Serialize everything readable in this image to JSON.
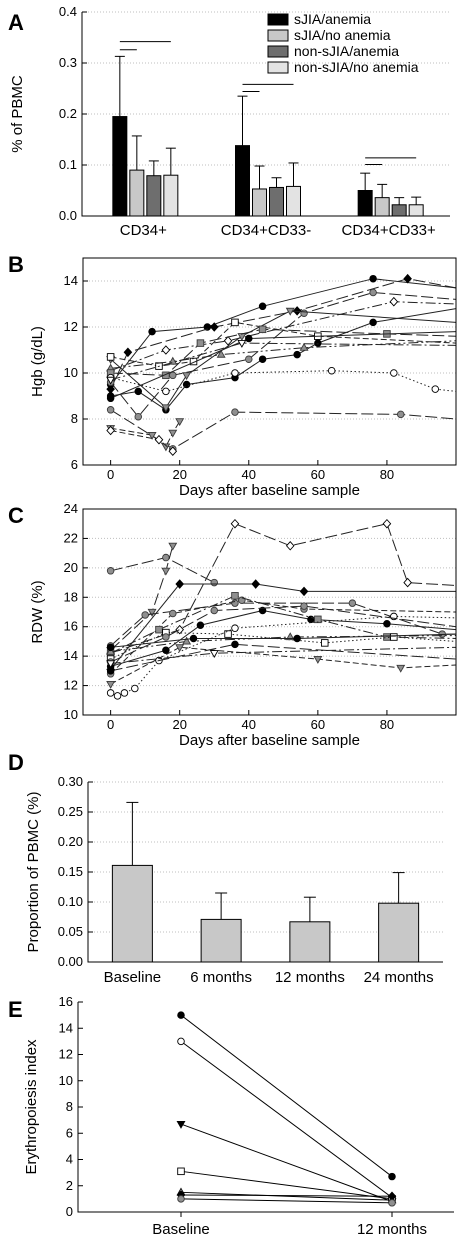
{
  "chart_data": [
    {
      "panel": "A",
      "type": "bar",
      "ylabel": "% of PBMC",
      "ylim": [
        0,
        0.4
      ],
      "yticks": [
        "0.0",
        "0.1",
        "0.2",
        "0.3",
        "0.4"
      ],
      "categories": [
        "CD34+",
        "CD34+CD33-",
        "CD34+CD33+"
      ],
      "series": [
        {
          "name": "sJIA/anemia",
          "values": [
            0.195,
            0.138,
            0.05
          ],
          "errors": [
            0.118,
            0.097,
            0.034
          ],
          "color": "#000000"
        },
        {
          "name": "sJIA/no anemia",
          "values": [
            0.09,
            0.053,
            0.036
          ],
          "errors": [
            0.067,
            0.045,
            0.026
          ],
          "color": "#c8c8c8"
        },
        {
          "name": "non-sJIA/anemia",
          "values": [
            0.079,
            0.056,
            0.022
          ],
          "errors": [
            0.029,
            0.019,
            0.014
          ],
          "color": "#6e6e6e"
        },
        {
          "name": "non-sJIA/no anemia",
          "values": [
            0.08,
            0.058,
            0.022
          ],
          "errors": [
            0.053,
            0.046,
            0.015
          ],
          "color": "#e3e3e3"
        }
      ],
      "brackets": [
        {
          "category": 0,
          "y": 0.342,
          "from": 0,
          "to": 3
        },
        {
          "category": 0,
          "y": 0.326,
          "from": 0,
          "to": 1
        },
        {
          "category": 1,
          "y": 0.258,
          "from": 0,
          "to": 3
        },
        {
          "category": 1,
          "y": 0.244,
          "from": 0,
          "to": 1
        },
        {
          "category": 2,
          "y": 0.114,
          "from": 0,
          "to": 3
        },
        {
          "category": 2,
          "y": 0.101,
          "from": 0,
          "to": 1
        }
      ],
      "grid": true,
      "legend_position": "top-right"
    },
    {
      "panel": "B",
      "type": "line",
      "xlabel": "Days after baseline sample",
      "ylabel": "Hgb (g/dL)",
      "xlim": [
        -8,
        100
      ],
      "ylim": [
        6,
        15
      ],
      "xticks": [
        0,
        20,
        40,
        60,
        80
      ],
      "yticks": [
        6,
        8,
        10,
        12,
        14
      ],
      "series": [
        {
          "marker": "filled-circle",
          "style": "solid",
          "points": [
            [
              0,
              9.5
            ],
            [
              12,
              11.8
            ],
            [
              28,
              12
            ],
            [
              44,
              12.9
            ],
            [
              76,
              14.1
            ],
            [
              100,
              13.7
            ]
          ]
        },
        {
          "marker": "filled-diamond",
          "style": "longdash",
          "points": [
            [
              0,
              9.3
            ],
            [
              5,
              10.9
            ],
            [
              30,
              12
            ],
            [
              54,
              12.7
            ],
            [
              86,
              14.1
            ],
            [
              100,
              13.7
            ]
          ]
        },
        {
          "marker": "open-diamond",
          "style": "dashdot",
          "points": [
            [
              0,
              10.1
            ],
            [
              16,
              11
            ],
            [
              34,
              11.4
            ],
            [
              82,
              13.1
            ],
            [
              100,
              13
            ]
          ]
        },
        {
          "marker": "grey-circle",
          "style": "longdash",
          "points": [
            [
              0,
              9.6
            ],
            [
              8,
              8.1
            ],
            [
              18,
              9.9
            ],
            [
              40,
              10.6
            ],
            [
              56,
              12.6
            ],
            [
              76,
              13.5
            ],
            [
              100,
              13.2
            ]
          ]
        },
        {
          "marker": "filled-circle",
          "style": "solid",
          "points": [
            [
              0,
              9
            ],
            [
              8,
              9.2
            ],
            [
              16,
              8.4
            ],
            [
              22,
              9.5
            ],
            [
              36,
              9.8
            ],
            [
              44,
              10.6
            ],
            [
              54,
              10.8
            ],
            [
              60,
              11.3
            ],
            [
              76,
              12.2
            ],
            [
              100,
              12.8
            ]
          ]
        },
        {
          "marker": "grey-triangle-down",
          "style": "solid",
          "points": [
            [
              0,
              10.6
            ],
            [
              16,
              8.5
            ],
            [
              22,
              9.9
            ],
            [
              38,
              11.6
            ],
            [
              52,
              12.7
            ],
            [
              100,
              12.2
            ]
          ]
        },
        {
          "marker": "open-square",
          "style": "dashed",
          "points": [
            [
              0,
              10.7
            ],
            [
              14,
              10.3
            ],
            [
              24,
              10.5
            ],
            [
              36,
              12.2
            ],
            [
              60,
              11.6
            ],
            [
              100,
              11.3
            ]
          ]
        },
        {
          "marker": "grey-triangle-up",
          "style": "dashdotdot",
          "points": [
            [
              0,
              10.2
            ],
            [
              18,
              10.5
            ],
            [
              32,
              10.8
            ],
            [
              56,
              11.1
            ],
            [
              100,
              11.4
            ]
          ]
        },
        {
          "marker": "grey-square",
          "style": "longdash",
          "points": [
            [
              0,
              10
            ],
            [
              16,
              9.9
            ],
            [
              26,
              11.3
            ],
            [
              44,
              11.9
            ],
            [
              80,
              11.7
            ],
            [
              100,
              11.6
            ]
          ]
        },
        {
          "marker": "open-circle",
          "style": "dotted",
          "points": [
            [
              0,
              9.8
            ],
            [
              16,
              9.2
            ],
            [
              36,
              10
            ],
            [
              64,
              10.1
            ],
            [
              82,
              10
            ],
            [
              94,
              9.3
            ],
            [
              100,
              9.2
            ]
          ]
        },
        {
          "marker": "grey-circle",
          "style": "longdash",
          "points": [
            [
              0,
              8.4
            ],
            [
              18,
              6.7
            ],
            [
              36,
              8.3
            ],
            [
              84,
              8.2
            ],
            [
              100,
              8
            ]
          ]
        },
        {
          "marker": "grey-triangle-down",
          "style": "dashed",
          "points": [
            [
              0,
              7.6
            ],
            [
              12,
              7.3
            ],
            [
              16,
              6.8
            ],
            [
              18,
              7.4
            ],
            [
              20,
              7.9
            ]
          ]
        },
        {
          "marker": "open-diamond",
          "style": "dashed",
          "points": [
            [
              0,
              7.5
            ],
            [
              14,
              7.1
            ],
            [
              18,
              6.6
            ]
          ]
        },
        {
          "marker": "filled-circle",
          "style": "solid",
          "points": [
            [
              0,
              8.9
            ],
            [
              40,
              11.5
            ],
            [
              100,
              11.8
            ]
          ]
        },
        {
          "marker": "open-triangle-down",
          "style": "dashdot",
          "points": [
            [
              0,
              9.7
            ],
            [
              38,
              11.3
            ],
            [
              100,
              11.2
            ]
          ]
        }
      ],
      "grid": true
    },
    {
      "panel": "C",
      "type": "line",
      "xlabel": "Days after baseline sample",
      "ylabel": "RDW (%)",
      "xlim": [
        -8,
        100
      ],
      "ylim": [
        10,
        24
      ],
      "xticks": [
        0,
        20,
        40,
        60,
        80
      ],
      "yticks": [
        10,
        12,
        14,
        16,
        18,
        20,
        22,
        24
      ],
      "series": [
        {
          "marker": "grey-circle",
          "style": "longdash",
          "points": [
            [
              0,
              19.8
            ],
            [
              16,
              20.7
            ],
            [
              30,
              19
            ]
          ]
        },
        {
          "marker": "grey-triangle-down",
          "style": "longdash",
          "points": [
            [
              0,
              14.4
            ],
            [
              12,
              17
            ],
            [
              16,
              19.8
            ],
            [
              18,
              21.5
            ]
          ]
        },
        {
          "marker": "open-diamond",
          "style": "longdash",
          "points": [
            [
              0,
              14.2
            ],
            [
              20,
              15.8
            ],
            [
              36,
              23
            ],
            [
              52,
              21.5
            ],
            [
              80,
              23
            ],
            [
              86,
              19
            ],
            [
              100,
              18.8
            ]
          ]
        },
        {
          "marker": "filled-diamond",
          "style": "solid",
          "points": [
            [
              0,
              13.1
            ],
            [
              20,
              18.9
            ],
            [
              42,
              18.9
            ],
            [
              56,
              18.4
            ],
            [
              100,
              18.4
            ]
          ]
        },
        {
          "marker": "grey-circle",
          "style": "longdash",
          "points": [
            [
              0,
              14.7
            ],
            [
              10,
              16.8
            ],
            [
              36,
              17.6
            ],
            [
              70,
              17.6
            ],
            [
              96,
              15.5
            ],
            [
              100,
              15.5
            ]
          ]
        },
        {
          "marker": "filled-circle",
          "style": "solid",
          "points": [
            [
              0,
              13.3
            ],
            [
              16,
              14.4
            ],
            [
              26,
              16.1
            ],
            [
              44,
              17.1
            ],
            [
              58,
              16.5
            ],
            [
              80,
              16.2
            ],
            [
              100,
              15.8
            ]
          ]
        },
        {
          "marker": "grey-circle",
          "style": "dashed",
          "points": [
            [
              0,
              12.8
            ],
            [
              18,
              16.9
            ],
            [
              38,
              17.8
            ],
            [
              56,
              17.2
            ],
            [
              100,
              17
            ]
          ]
        },
        {
          "marker": "grey-square",
          "style": "dashdot",
          "points": [
            [
              0,
              14.2
            ],
            [
              14,
              15.8
            ],
            [
              36,
              18.1
            ],
            [
              60,
              16.5
            ],
            [
              80,
              15.3
            ],
            [
              100,
              15.2
            ]
          ]
        },
        {
          "marker": "open-square",
          "style": "dotted",
          "points": [
            [
              0,
              13.8
            ],
            [
              16,
              15.6
            ],
            [
              34,
              15.5
            ],
            [
              62,
              14.9
            ],
            [
              82,
              15.3
            ],
            [
              100,
              15
            ]
          ]
        },
        {
          "marker": "grey-triangle-up",
          "style": "dashdotdot",
          "points": [
            [
              0,
              14.3
            ],
            [
              22,
              15
            ],
            [
              52,
              15.3
            ],
            [
              100,
              15.4
            ]
          ]
        },
        {
          "marker": "filled-circle",
          "style": "solid",
          "points": [
            [
              0,
              14.6
            ],
            [
              24,
              15.2
            ],
            [
              54,
              15.2
            ],
            [
              100,
              15.5
            ]
          ]
        },
        {
          "marker": "open-circle",
          "style": "dotted",
          "points": [
            [
              0,
              11.5
            ],
            [
              2,
              11.3
            ],
            [
              4,
              11.5
            ],
            [
              7,
              11.8
            ],
            [
              14,
              13.7
            ],
            [
              36,
              15.9
            ],
            [
              82,
              16.7
            ],
            [
              100,
              16.6
            ]
          ]
        },
        {
          "marker": "grey-circle",
          "style": "longdash",
          "points": [
            [
              0,
              13.6
            ],
            [
              16,
              15.3
            ],
            [
              30,
              17.1
            ],
            [
              56,
              17.4
            ],
            [
              100,
              16
            ]
          ]
        },
        {
          "marker": "grey-triangle-down",
          "style": "dashed",
          "points": [
            [
              0,
              12.1
            ],
            [
              20,
              14.6
            ],
            [
              60,
              13.8
            ],
            [
              84,
              13.2
            ],
            [
              100,
              13.4
            ]
          ]
        },
        {
          "marker": "filled-circle",
          "style": "longdash",
          "points": [
            [
              0,
              13
            ],
            [
              36,
              14.8
            ],
            [
              100,
              13.8
            ]
          ]
        },
        {
          "marker": "open-triangle-down",
          "style": "dashdot",
          "points": [
            [
              0,
              13.5
            ],
            [
              30,
              14.2
            ],
            [
              100,
              14.6
            ]
          ]
        }
      ],
      "grid": true
    },
    {
      "panel": "D",
      "type": "bar",
      "ylabel": "Proportion of PBMC (%)",
      "ylim": [
        0,
        0.3
      ],
      "yticks": [
        "0.00",
        "0.05",
        "0.10",
        "0.15",
        "0.20",
        "0.25",
        "0.30"
      ],
      "categories": [
        "Baseline",
        "6 months",
        "12 months",
        "24 months"
      ],
      "values": [
        0.161,
        0.071,
        0.067,
        0.098
      ],
      "errors": [
        0.105,
        0.044,
        0.041,
        0.051
      ],
      "color": "#c8c8c8",
      "grid": true
    },
    {
      "panel": "E",
      "type": "line",
      "ylabel": "Erythropoiesis index",
      "ylim": [
        0,
        16
      ],
      "yticks": [
        0,
        2,
        4,
        6,
        8,
        10,
        12,
        14,
        16
      ],
      "categories": [
        "Baseline",
        "12 months"
      ],
      "series": [
        {
          "marker": "filled-circle",
          "values": [
            15,
            2.7
          ]
        },
        {
          "marker": "open-circle",
          "values": [
            13,
            1.1
          ]
        },
        {
          "marker": "filled-triangle-down",
          "values": [
            6.7,
            0.8
          ]
        },
        {
          "marker": "open-square",
          "values": [
            3.1,
            1
          ]
        },
        {
          "marker": "open-triangle-up",
          "values": [
            1.5,
            0.9
          ]
        },
        {
          "marker": "filled-diamond",
          "values": [
            1.3,
            1.2
          ]
        },
        {
          "marker": "grey-circle",
          "values": [
            1,
            0.7
          ]
        }
      ],
      "grid": false
    }
  ]
}
